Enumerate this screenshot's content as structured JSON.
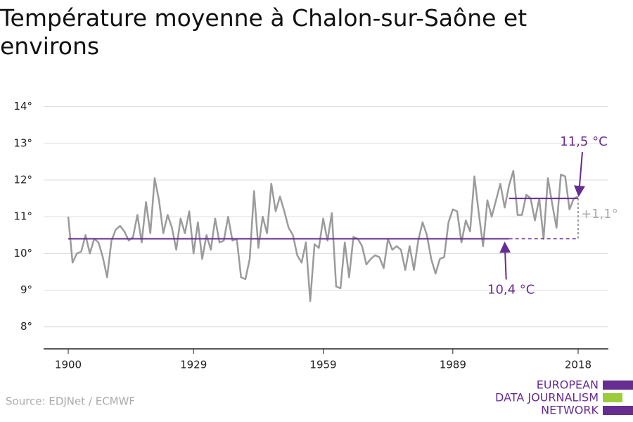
{
  "chart_data": {
    "type": "line",
    "title": "Température moyenne à Chalon-sur-Saône et environs",
    "source": "Source: EDJNet / ECMWF",
    "logo": [
      "EUROPEAN",
      "DATA JOURNALISM",
      "NETWORK"
    ],
    "x": [
      1900,
      1901,
      1902,
      1903,
      1904,
      1905,
      1906,
      1907,
      1908,
      1909,
      1910,
      1911,
      1912,
      1913,
      1914,
      1915,
      1916,
      1917,
      1918,
      1919,
      1920,
      1921,
      1922,
      1923,
      1924,
      1925,
      1926,
      1927,
      1928,
      1929,
      1930,
      1931,
      1932,
      1933,
      1934,
      1935,
      1936,
      1937,
      1938,
      1939,
      1940,
      1941,
      1942,
      1943,
      1944,
      1945,
      1946,
      1947,
      1948,
      1949,
      1950,
      1951,
      1952,
      1953,
      1954,
      1955,
      1956,
      1957,
      1958,
      1959,
      1960,
      1961,
      1962,
      1963,
      1964,
      1965,
      1966,
      1967,
      1968,
      1969,
      1970,
      1971,
      1972,
      1973,
      1974,
      1975,
      1976,
      1977,
      1978,
      1979,
      1980,
      1981,
      1982,
      1983,
      1984,
      1985,
      1986,
      1987,
      1988,
      1989,
      1990,
      1991,
      1992,
      1993,
      1994,
      1995,
      1996,
      1997,
      1998,
      1999,
      2000,
      2001,
      2002,
      2003,
      2004,
      2005,
      2006,
      2007,
      2008,
      2009,
      2010,
      2011,
      2012,
      2013,
      2014,
      2015,
      2016,
      2017,
      2018
    ],
    "series": [
      {
        "color": "#9b9b9b",
        "values": [
          11.0,
          9.75,
          10.0,
          10.05,
          10.5,
          10.0,
          10.4,
          10.3,
          9.9,
          9.35,
          10.35,
          10.65,
          10.75,
          10.6,
          10.35,
          10.45,
          11.05,
          10.3,
          11.4,
          10.55,
          12.05,
          11.45,
          10.55,
          11.05,
          10.7,
          10.1,
          10.95,
          10.55,
          11.15,
          10.0,
          10.85,
          9.85,
          10.5,
          10.1,
          10.95,
          10.3,
          10.35,
          11.0,
          10.35,
          10.4,
          9.35,
          9.3,
          9.85,
          11.7,
          10.15,
          11.0,
          10.55,
          11.9,
          11.15,
          11.55,
          11.15,
          10.7,
          10.5,
          9.95,
          9.75,
          10.3,
          8.7,
          10.25,
          10.15,
          10.95,
          10.35,
          11.1,
          9.1,
          9.05,
          10.3,
          9.35,
          10.45,
          10.4,
          10.2,
          9.7,
          9.85,
          9.95,
          9.9,
          9.6,
          10.4,
          10.1,
          10.2,
          10.1,
          9.55,
          10.2,
          9.55,
          10.35,
          10.85,
          10.5,
          9.85,
          9.45,
          9.85,
          9.9,
          10.85,
          11.2,
          11.15,
          10.3,
          10.9,
          10.6,
          12.1,
          11.1,
          10.2,
          11.45,
          11.0,
          11.45,
          11.9,
          11.25,
          11.85,
          12.25,
          11.05,
          11.05,
          11.6,
          11.5,
          10.9,
          11.5,
          10.4,
          12.05,
          11.35,
          10.7,
          12.15,
          12.1,
          11.2,
          11.5,
          11.55
        ]
      }
    ],
    "baseline": {
      "value": 10.4,
      "label": "10,4 °C",
      "start": 1900,
      "end": 2002
    },
    "recent": {
      "value": 11.5,
      "label": "11,5 °C",
      "start": 2002,
      "end": 2018
    },
    "difference": {
      "label": "+1,1°"
    },
    "accent_color": "#662d91",
    "xlim": [
      1894.3,
      2025
    ],
    "ylim": [
      7.4,
      14.3
    ],
    "xticks": [
      1900,
      1929,
      1959,
      1989,
      2018
    ],
    "yticks": [
      {
        "value": 8,
        "label": "8°"
      },
      {
        "value": 9,
        "label": "9°"
      },
      {
        "value": 10,
        "label": "10°"
      },
      {
        "value": 11,
        "label": "11°"
      },
      {
        "value": 12,
        "label": "12°"
      },
      {
        "value": 13,
        "label": "13°"
      },
      {
        "value": 14,
        "label": "14°"
      }
    ],
    "grid": true
  }
}
